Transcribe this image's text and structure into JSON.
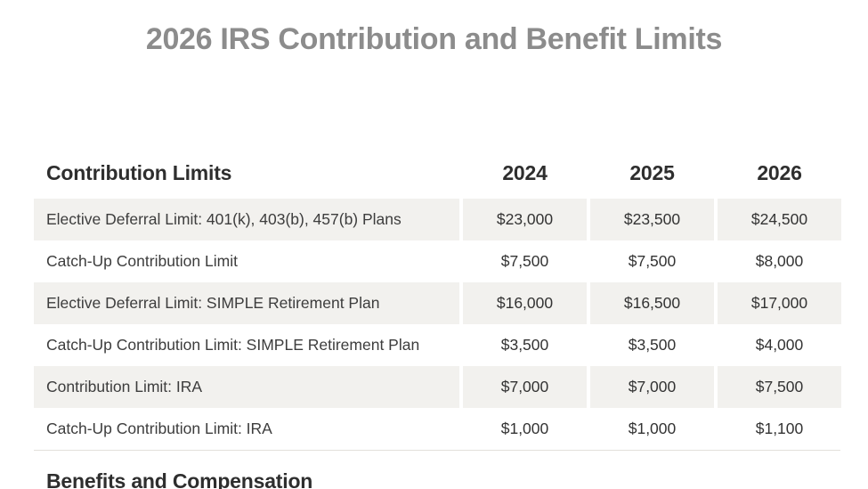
{
  "page": {
    "title": "2026 IRS Contribution and Benefit Limits"
  },
  "table": {
    "header": {
      "label": "Contribution Limits",
      "years": [
        "2024",
        "2025",
        "2026"
      ]
    },
    "rows": [
      {
        "label": "Elective Deferral Limit: 401(k), 403(b), 457(b) Plans",
        "values": [
          "$23,000",
          "$23,500",
          "$24,500"
        ]
      },
      {
        "label": "Catch-Up Contribution Limit",
        "values": [
          "$7,500",
          "$7,500",
          "$8,000"
        ]
      },
      {
        "label": "Elective Deferral Limit: SIMPLE Retirement Plan",
        "values": [
          "$16,000",
          "$16,500",
          "$17,000"
        ]
      },
      {
        "label": "Catch-Up Contribution Limit: SIMPLE Retirement Plan",
        "values": [
          "$3,500",
          "$3,500",
          "$4,000"
        ]
      },
      {
        "label": "Contribution Limit: IRA",
        "values": [
          "$7,000",
          "$7,000",
          "$7,500"
        ]
      },
      {
        "label": "Catch-Up Contribution Limit: IRA",
        "values": [
          "$1,000",
          "$1,000",
          "$1,100"
        ]
      }
    ]
  },
  "next_section": {
    "heading": "Benefits and Compensation"
  },
  "colors": {
    "title_gray": "#8c8c8c",
    "heading_dark": "#2e2e2e",
    "body_text": "#3d3d3d",
    "row_shade": "#f2f1ee",
    "table_border": "#e2e0db"
  }
}
